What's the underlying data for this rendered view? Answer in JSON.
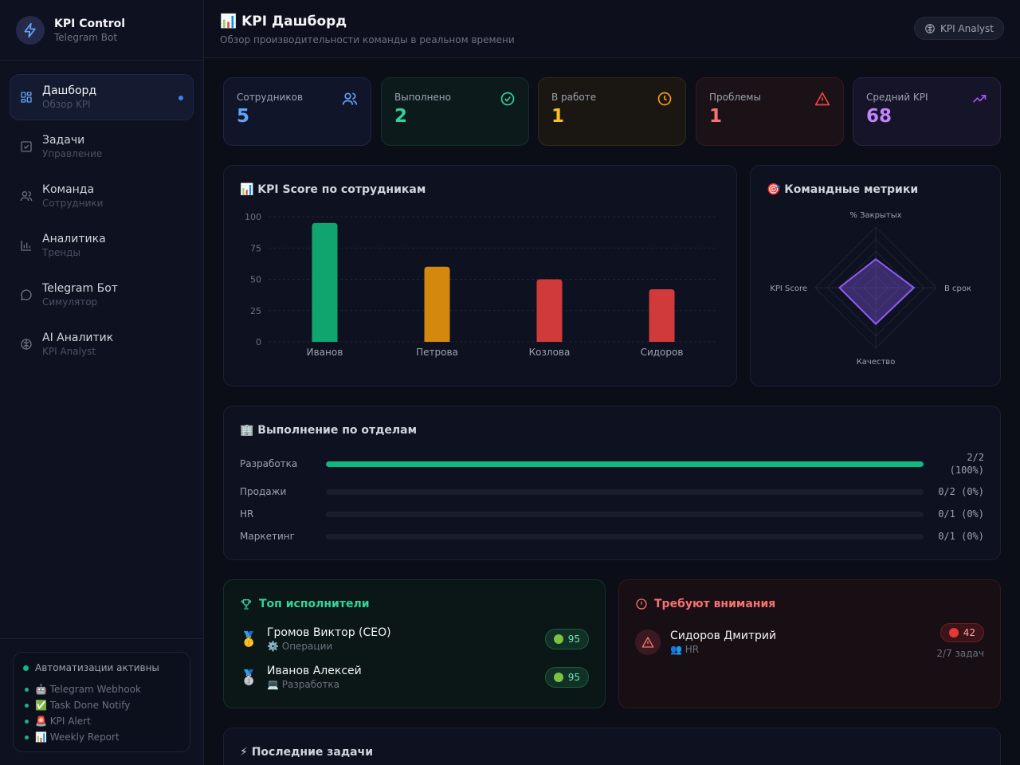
{
  "brand": {
    "title": "KPI Control",
    "subtitle": "Telegram Bot",
    "icon": "lightning-icon"
  },
  "sidebar": {
    "items": [
      {
        "label": "Дашборд",
        "sub": "Обзор KPI",
        "icon": "dashboard-icon",
        "active": true
      },
      {
        "label": "Задачи",
        "sub": "Управление",
        "icon": "checkbox-icon"
      },
      {
        "label": "Команда",
        "sub": "Сотрудники",
        "icon": "users-icon"
      },
      {
        "label": "Аналитика",
        "sub": "Тренды",
        "icon": "bar-chart-icon"
      },
      {
        "label": "Telegram Бот",
        "sub": "Симулятор",
        "icon": "chat-icon"
      },
      {
        "label": "AI Аналитик",
        "sub": "KPI Analyst",
        "icon": "brain-icon"
      }
    ],
    "automations": {
      "title": "Автоматизации активны",
      "items": [
        "🤖 Telegram Webhook",
        "✅ Task Done Notify",
        "🚨 KPI Alert",
        "📊 Weekly Report"
      ]
    }
  },
  "header": {
    "title": "📊 KPI Дашборд",
    "subtitle": "Обзор производительности команды в реальном времени",
    "button": "KPI Analyst"
  },
  "stats": [
    {
      "label": "Сотрудников",
      "value": "5",
      "color": "#60a5fa",
      "icon": "users-icon"
    },
    {
      "label": "Выполнено",
      "value": "2",
      "color": "#34d399",
      "icon": "check-circle-icon"
    },
    {
      "label": "В работе",
      "value": "1",
      "color": "#fbbf24",
      "icon": "clock-icon"
    },
    {
      "label": "Проблемы",
      "value": "1",
      "color": "#f87171",
      "icon": "warning-icon"
    },
    {
      "label": "Средний KPI",
      "value": "68",
      "color": "#c084fc",
      "icon": "trending-up-icon"
    }
  ],
  "kpi_chart": {
    "title": "📊 KPI Score по сотрудникам"
  },
  "radar_chart": {
    "title": "🎯 Командные метрики"
  },
  "chart_data": [
    {
      "type": "bar",
      "title": "📊 KPI Score по сотрудникам",
      "categories": [
        "Иванов",
        "Петрова",
        "Козлова",
        "Сидоров"
      ],
      "values": [
        95,
        60,
        50,
        42
      ],
      "colors": [
        "#10a56f",
        "#d4880e",
        "#d13a3a",
        "#d13a3a"
      ],
      "yticks": [
        0,
        25,
        50,
        75,
        100
      ],
      "ylim": [
        0,
        100
      ],
      "grid": true
    },
    {
      "type": "radar",
      "title": "🎯 Командные метрики",
      "axes": [
        "% Закрытых",
        "В срок",
        "Качество",
        "KPI Score"
      ],
      "values": [
        47,
        63,
        60,
        60
      ],
      "range": [
        0,
        100
      ],
      "color": "#8b5cf6"
    }
  ],
  "departments": {
    "title": "🏢 Выполнение по отделам",
    "rows": [
      {
        "name": "Разработка",
        "line1": "2/2",
        "line2": "(100%)",
        "fraction": 1.0
      },
      {
        "name": "Продажи",
        "line1": "0/2 (0%)",
        "line2": "",
        "fraction": 0
      },
      {
        "name": "HR",
        "line1": "0/1 (0%)",
        "line2": "",
        "fraction": 0
      },
      {
        "name": "Маркетинг",
        "line1": "0/1 (0%)",
        "line2": "",
        "fraction": 0
      }
    ]
  },
  "top_performers": {
    "title": "Топ исполнители",
    "items": [
      {
        "medal": "🥇",
        "name": "Громов Виктор (CEO)",
        "dept": "⚙️ Операции",
        "score": "95"
      },
      {
        "medal": "🥈",
        "name": "Иванов Алексей",
        "dept": "💻 Разработка",
        "score": "95"
      }
    ]
  },
  "attention": {
    "title": "Требуют внимания",
    "items": [
      {
        "name": "Сидоров Дмитрий",
        "dept": "👥 HR",
        "score": "42",
        "tasks": "2/7 задач"
      }
    ]
  },
  "recent_tasks": {
    "title": "⚡ Последние задачи"
  }
}
